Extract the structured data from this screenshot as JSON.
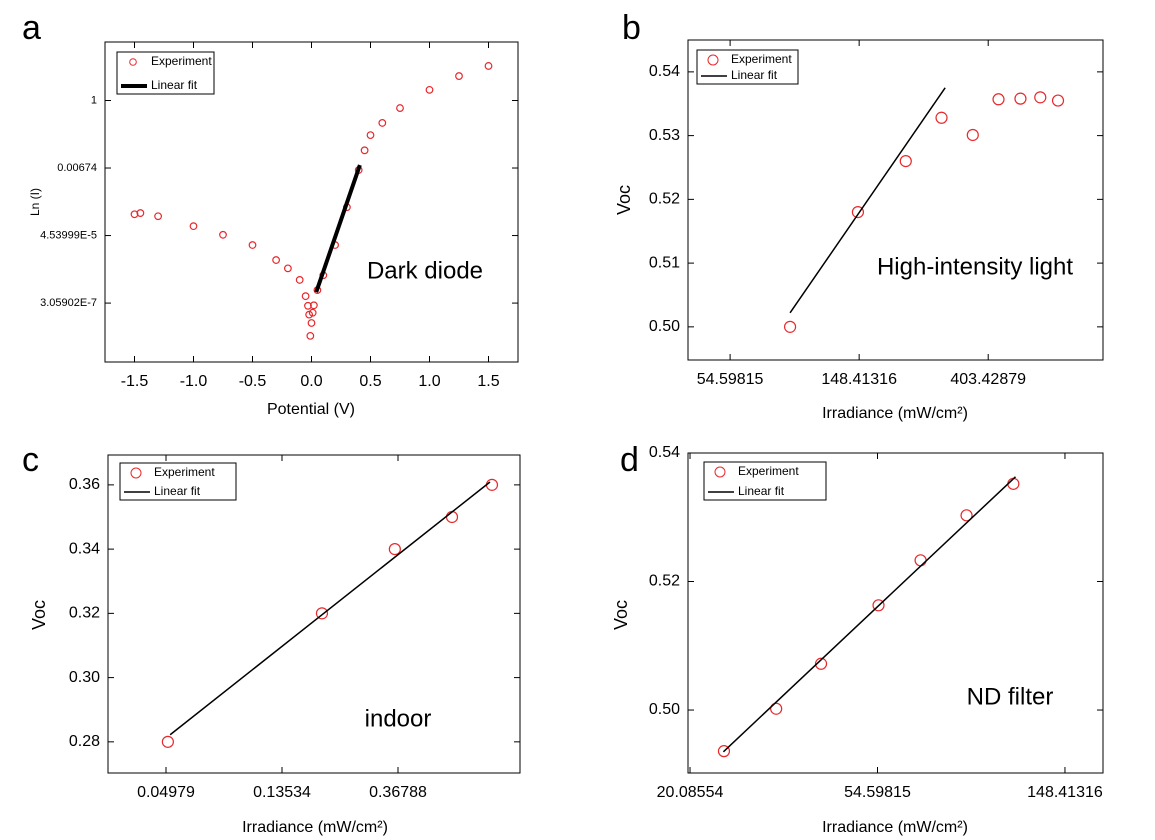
{
  "chart_data": [
    {
      "type": "scatter",
      "label": "a",
      "xlabel": "Potential (V)",
      "ylabel": "Ln (I)",
      "annotation": "Dark diode",
      "xlim": [
        -1.75,
        1.75
      ],
      "ylim": [
        3.9e-09,
        76
      ],
      "yscale": "log",
      "xticks": [
        -1.5,
        {
          "value": -1,
          "label": "-1.0"
        },
        -0.5,
        {
          "value": 0,
          "label": "0.0"
        },
        0.5,
        {
          "value": 1,
          "label": "1.0"
        },
        1.5
      ],
      "yticks": [
        {
          "value": 3.05902e-07,
          "label": "3.05902E-7"
        },
        {
          "value": 4.53999e-05,
          "label": "4.53999E-5"
        },
        0.00674,
        1
      ],
      "series": [
        {
          "name": "Experiment",
          "color": "#e8282b",
          "marker": "circle",
          "x": [
            -1.5,
            -1.45,
            -1.3,
            -1.0,
            -0.75,
            -0.5,
            -0.3,
            -0.2,
            -0.1,
            -0.05,
            -0.03,
            -0.02,
            -0.01,
            0.0,
            0.01,
            0.02,
            0.05,
            0.1,
            0.2,
            0.3,
            0.4,
            0.45,
            0.5,
            0.6,
            0.75,
            1.0,
            1.25,
            1.5
          ],
          "values": [
            0.00022,
            0.00024,
            0.00019,
            9.1e-05,
            4.8e-05,
            2.25e-05,
            7.4e-06,
            4e-06,
            1.7e-06,
            5.1e-07,
            2.5e-07,
            1.3e-07,
            2.7e-08,
            7e-08,
            1.5e-07,
            2.6e-07,
            8e-07,
            2.4e-06,
            2.25e-05,
            0.00037,
            0.0058,
            0.025,
            0.077,
            0.19,
            0.57,
            2.2,
            6.1,
            12.9
          ]
        },
        {
          "name": "Linear fit",
          "color": "#000000",
          "marker": "line",
          "line_width": 4,
          "x": [
            0.04,
            0.41
          ],
          "values": [
            6.9e-07,
            0.0084
          ]
        }
      ]
    },
    {
      "type": "scatter",
      "label": "b",
      "xlabel": "Irradiance (mW/cm²)",
      "ylabel": "Voc",
      "annotation": "High-intensity light",
      "xlim": [
        39.4,
        982
      ],
      "ylim": [
        0.4948,
        0.545
      ],
      "xscale": "log",
      "xticks": [
        54.59815,
        148.41316,
        403.42879
      ],
      "yticks": [
        {
          "value": 0.5,
          "label": "0.50"
        },
        0.51,
        0.52,
        0.53,
        0.54
      ],
      "series": [
        {
          "name": "Experiment",
          "color": "#e8282b",
          "marker": "circle",
          "x": [
            86.9,
            147,
            213,
            281,
            358,
            437,
            518,
            604,
            693
          ],
          "values": [
            0.5,
            0.518,
            0.526,
            0.5328,
            0.5301,
            0.5357,
            0.5358,
            0.536,
            0.5355
          ]
        },
        {
          "name": "Linear fit",
          "color": "#000000",
          "marker": "line",
          "line_width": 1.5,
          "x": [
            86.9,
            289
          ],
          "values": [
            0.5022,
            0.5375
          ]
        }
      ]
    },
    {
      "type": "scatter",
      "label": "c",
      "xlabel": "Irradiance (mW/cm²)",
      "ylabel": "Voc",
      "annotation": "indoor",
      "xlim": [
        0.0302,
        1.053
      ],
      "ylim": [
        0.2703,
        0.3693
      ],
      "xscale": "log",
      "xticks": [
        0.04979,
        0.13534,
        0.36788
      ],
      "yticks": [
        0.28,
        {
          "value": 0.3,
          "label": "0.30"
        },
        0.32,
        0.34,
        0.36
      ],
      "series": [
        {
          "name": "Experiment",
          "color": "#e8282b",
          "marker": "circle",
          "x": [
            0.0506,
            0.191,
            0.358,
            0.586,
            0.827
          ],
          "values": [
            0.28,
            0.32,
            0.34,
            0.35,
            0.36
          ]
        },
        {
          "name": "Linear fit",
          "color": "#000000",
          "marker": "line",
          "line_width": 1.5,
          "x": [
            0.0516,
            0.813
          ],
          "values": [
            0.2822,
            0.3609
          ]
        }
      ]
    },
    {
      "type": "scatter",
      "label": "d",
      "xlabel": "Irradiance (mW/cm²)",
      "ylabel": "Voc",
      "annotation": "ND filter",
      "xlim": [
        19.87,
        181.8
      ],
      "ylim": [
        0.4902,
        0.54
      ],
      "xscale": "log",
      "xticks": [
        20.08554,
        54.59815,
        148.41316
      ],
      "yticks": [
        {
          "value": 0.5,
          "label": "0.50"
        },
        0.52,
        0.54
      ],
      "series": [
        {
          "name": "Experiment",
          "color": "#e8282b",
          "marker": "circle",
          "x": [
            24.07,
            31.8,
            40.4,
            54.9,
            68.7,
            87.8,
            112.7
          ],
          "values": [
            0.4936,
            0.5002,
            0.5072,
            0.5163,
            0.5233,
            0.5303,
            0.5352
          ]
        },
        {
          "name": "Linear fit",
          "color": "#000000",
          "marker": "line",
          "line_width": 1.5,
          "x": [
            24.0,
            114
          ],
          "values": [
            0.4935,
            0.5363
          ]
        }
      ]
    }
  ]
}
